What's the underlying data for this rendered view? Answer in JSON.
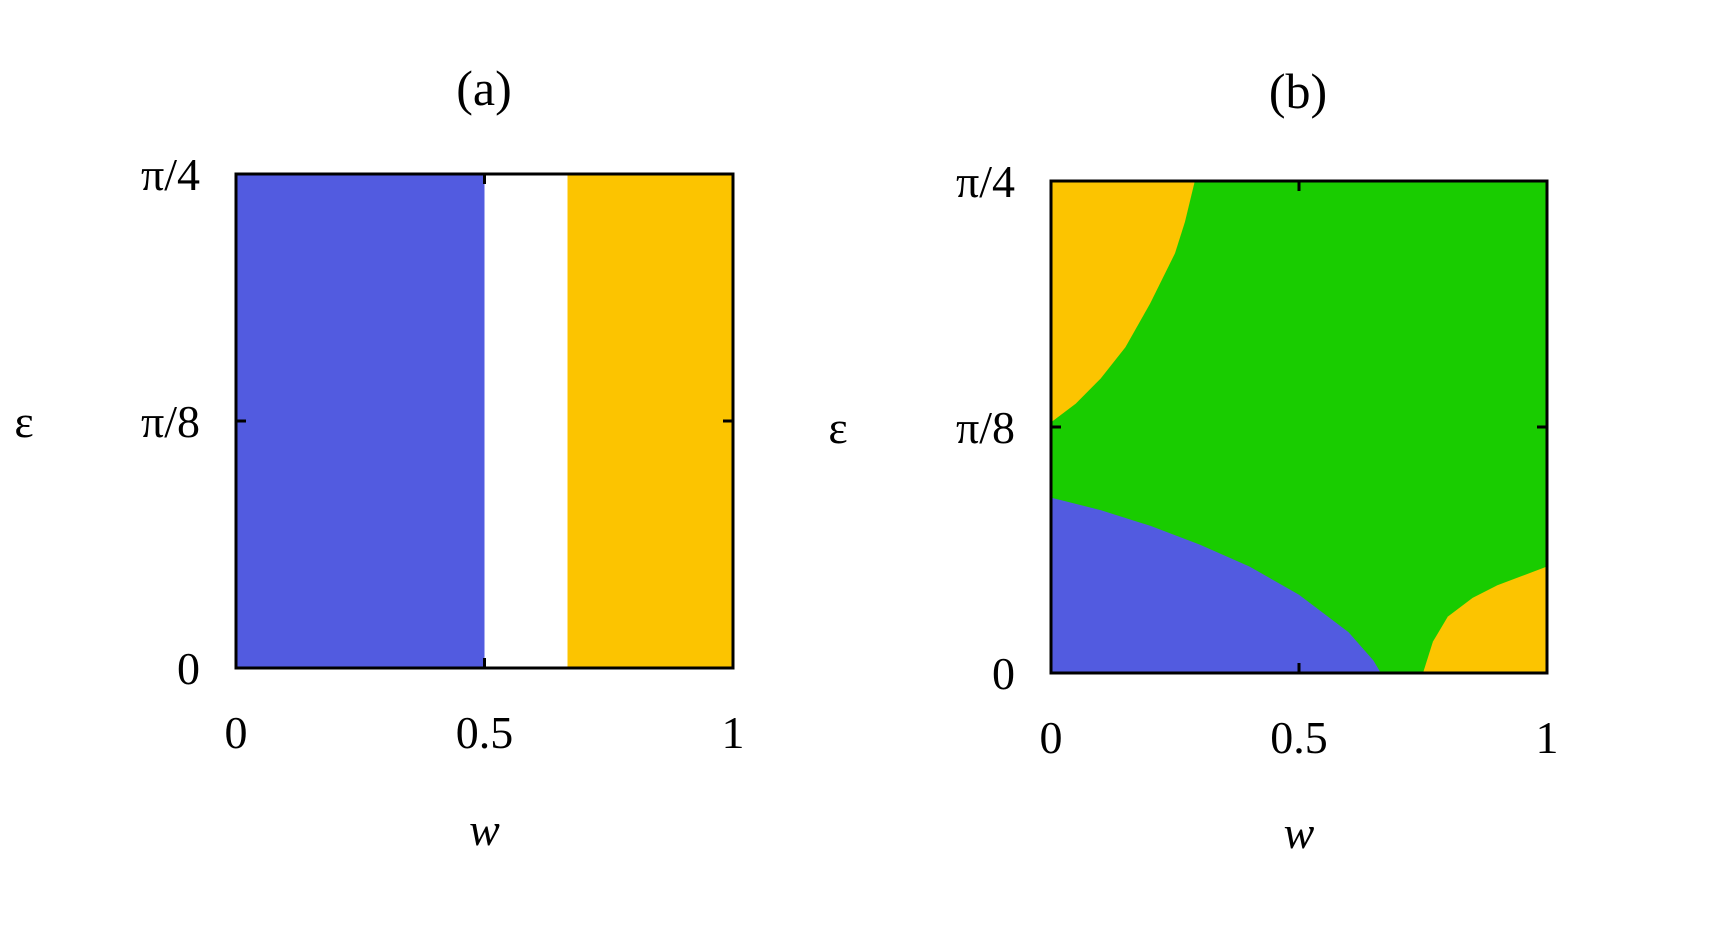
{
  "chart_data": [
    {
      "type": "heatmap",
      "title": "(a)",
      "xlabel": "w",
      "ylabel": "ε",
      "xlim": [
        0,
        1
      ],
      "ylim_labels": [
        "0",
        "π/8",
        "π/4"
      ],
      "ylim": [
        0,
        0.7854
      ],
      "xticks": [
        0,
        0.5,
        1
      ],
      "xtick_labels": [
        "0",
        "0.5",
        "1"
      ],
      "yticks": [
        0,
        0.3927,
        0.7854
      ],
      "ytick_labels": [
        "0",
        "π/8",
        "π/4"
      ],
      "grid": false,
      "regions": [
        {
          "color": "#525be0",
          "w_range": [
            0,
            0.5
          ],
          "epsilon_range": [
            0,
            0.7854
          ]
        },
        {
          "color": "#ffffff",
          "w_range": [
            0.5,
            0.667
          ],
          "epsilon_range": [
            0,
            0.7854
          ]
        },
        {
          "color": "#fcc400",
          "w_range": [
            0.667,
            1
          ],
          "epsilon_range": [
            0,
            0.7854
          ]
        }
      ]
    },
    {
      "type": "heatmap",
      "title": "(b)",
      "xlabel": "w",
      "ylabel": "ε",
      "xlim": [
        0,
        1
      ],
      "ylim": [
        0,
        0.7854
      ],
      "xticks": [
        0,
        0.5,
        1
      ],
      "xtick_labels": [
        "0",
        "0.5",
        "1"
      ],
      "yticks": [
        0,
        0.3927,
        0.7854
      ],
      "ytick_labels": [
        "0",
        "π/8",
        "π/4"
      ],
      "grid": false,
      "background_color": "#19cc00",
      "regions": [
        {
          "color": "#fcc400",
          "boundary": [
            [
              0,
              0.4
            ],
            [
              0.05,
              0.43
            ],
            [
              0.1,
              0.47
            ],
            [
              0.15,
              0.52
            ],
            [
              0.2,
              0.59
            ],
            [
              0.25,
              0.67
            ],
            [
              0.27,
              0.72
            ],
            [
              0.29,
              0.7854
            ]
          ]
        },
        {
          "color": "#525be0",
          "boundary": [
            [
              0,
              0.28
            ],
            [
              0.1,
              0.26
            ],
            [
              0.2,
              0.235
            ],
            [
              0.3,
              0.205
            ],
            [
              0.4,
              0.17
            ],
            [
              0.5,
              0.125
            ],
            [
              0.6,
              0.065
            ],
            [
              0.65,
              0.02
            ],
            [
              0.665,
              0
            ]
          ]
        },
        {
          "color": "#fcc400",
          "boundary": [
            [
              0.75,
              0
            ],
            [
              0.77,
              0.05
            ],
            [
              0.8,
              0.09
            ],
            [
              0.85,
              0.12
            ],
            [
              0.9,
              0.14
            ],
            [
              0.95,
              0.155
            ],
            [
              1,
              0.17
            ]
          ]
        }
      ]
    }
  ]
}
